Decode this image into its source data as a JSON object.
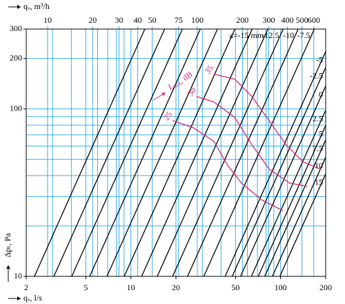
{
  "chart_data": {
    "type": "line",
    "x_label": "qᵥ, l/s",
    "x2_label": "qᵥ, m³/h",
    "y_label": "Δpₜ, Pa",
    "xlog": true,
    "ylog": true,
    "xlim": [
      2,
      200
    ],
    "xticks": [
      2,
      5,
      10,
      20,
      50,
      100,
      200
    ],
    "xgrid": [
      2,
      3,
      4,
      5,
      6,
      7,
      8,
      9,
      10,
      20,
      30,
      40,
      50,
      60,
      70,
      80,
      90,
      100,
      200
    ],
    "x2lim": [
      7.2,
      720
    ],
    "x2ticks": [
      10,
      20,
      30,
      40,
      50,
      75,
      100,
      200,
      300,
      400,
      500,
      600
    ],
    "ylim": [
      10,
      300
    ],
    "yticks": [
      10,
      100,
      200,
      300
    ],
    "ygrid": [
      10,
      20,
      30,
      40,
      50,
      60,
      70,
      80,
      90,
      100,
      200,
      300
    ],
    "grid_color": "#39b0e5",
    "series": [
      {
        "color": "#000000",
        "x": [
          2.27,
          12.4
        ],
        "y": [
          10,
          300
        ]
      },
      {
        "color": "#000000",
        "x": [
          3.06,
          16.8
        ],
        "y": [
          10,
          300
        ]
      },
      {
        "color": "#000000",
        "x": [
          4.03,
          22.1
        ],
        "y": [
          10,
          300
        ]
      },
      {
        "color": "#000000",
        "x": [
          5.31,
          29.1
        ],
        "y": [
          10,
          300
        ]
      },
      {
        "color": "#000000",
        "x": [
          6.92,
          37.9
        ],
        "y": [
          10,
          300
        ]
      },
      {
        "color": "#000000",
        "x": [
          9.03,
          49.5
        ],
        "y": [
          10,
          300
        ]
      },
      {
        "color": "#000000",
        "x": [
          11.8,
          64.6
        ],
        "y": [
          10,
          300
        ]
      },
      {
        "name": "a=-15 mm",
        "color": "#000000",
        "x": [
          15.0,
          82.2
        ],
        "y": [
          10,
          300
        ]
      },
      {
        "name": "-12.5",
        "color": "#000000",
        "x": [
          19.0,
          104
        ],
        "y": [
          10,
          300
        ]
      },
      {
        "name": "-10",
        "color": "#000000",
        "x": [
          23.9,
          131
        ],
        "y": [
          10,
          300
        ]
      },
      {
        "name": "-7.5",
        "color": "#000000",
        "x": [
          30.7,
          168
        ],
        "y": [
          10,
          300
        ]
      },
      {
        "name": "-5",
        "color": "#000000",
        "x": [
          42.6,
          200
        ],
        "y": [
          10,
          220
        ]
      },
      {
        "name": "-2.5",
        "color": "#000000",
        "x": [
          47.5,
          200
        ],
        "y": [
          10,
          177
        ]
      },
      {
        "name": "0",
        "color": "#000000",
        "x": [
          54.0,
          200
        ],
        "y": [
          10,
          137
        ]
      },
      {
        "name": "2.5",
        "color": "#000000",
        "x": [
          63.8,
          200
        ],
        "y": [
          10,
          98.2
        ]
      },
      {
        "name": "5",
        "color": "#000000",
        "x": [
          70.9,
          200
        ],
        "y": [
          10,
          79.6
        ]
      },
      {
        "name": "7.5",
        "color": "#000000",
        "x": [
          78.3,
          200
        ],
        "y": [
          10,
          65.2
        ]
      },
      {
        "name": "10",
        "color": "#000000",
        "x": [
          88.2,
          200
        ],
        "y": [
          10,
          51.4
        ]
      },
      {
        "name": "15",
        "color": "#000000",
        "x": [
          98.9,
          200
        ],
        "y": [
          10,
          40.9
        ]
      }
    ],
    "level_label": {
      "symbol": "L",
      "sub": "WA",
      "unit": ", dB"
    },
    "curves": [
      {
        "name": "25",
        "color": "#d6257e",
        "x": [
          19.0,
          26.1,
          35.8,
          44.4,
          54.8,
          75.3,
          103.6
        ],
        "y": [
          85.1,
          77.3,
          64.0,
          45.8,
          36.1,
          28.5,
          24.7
        ]
      },
      {
        "name": "30",
        "color": "#d6257e",
        "x": [
          27.5,
          35.8,
          49.3,
          64.3,
          83.8,
          115,
          150
        ],
        "y": [
          118.7,
          110,
          89.2,
          61.0,
          43.7,
          36.1,
          34.5
        ]
      },
      {
        "name": "35",
        "color": "#d6257e",
        "x": [
          35.8,
          49.3,
          64.3,
          83.8,
          109,
          142,
          186
        ],
        "y": [
          161,
          150.6,
          118.7,
          85.1,
          61.0,
          48.1,
          43.7
        ]
      }
    ]
  }
}
